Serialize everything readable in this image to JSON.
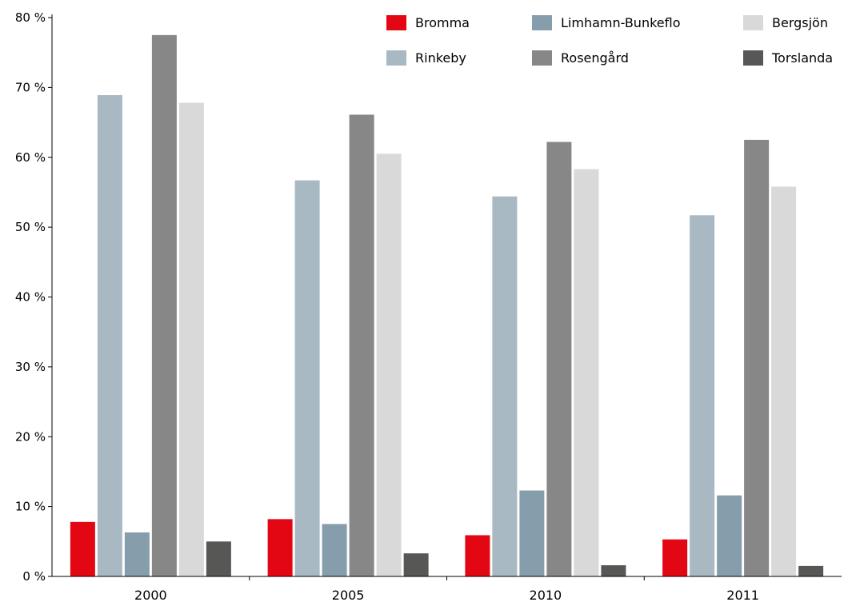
{
  "chart_data": {
    "type": "bar",
    "categories": [
      "2000",
      "2005",
      "2010",
      "2011"
    ],
    "series": [
      {
        "name": "Bromma",
        "color": "#e30613",
        "values": [
          7.8,
          8.2,
          5.9,
          5.3
        ]
      },
      {
        "name": "Rinkeby",
        "color": "#a9b9c4",
        "values": [
          68.9,
          56.7,
          54.4,
          51.7
        ]
      },
      {
        "name": "Limhamn-Bunkeflo",
        "color": "#869dab",
        "values": [
          6.3,
          7.5,
          12.3,
          11.6
        ]
      },
      {
        "name": "Rosengård",
        "color": "#878787",
        "values": [
          77.5,
          66.1,
          62.2,
          62.5
        ]
      },
      {
        "name": "Bergsjön",
        "color": "#d9d9d9",
        "values": [
          67.8,
          60.5,
          58.3,
          55.8
        ]
      },
      {
        "name": "Torslanda",
        "color": "#575756",
        "values": [
          5.0,
          3.3,
          1.6,
          1.5
        ]
      }
    ],
    "legend_order": [
      "Bromma",
      "Limhamn-Bunkeflo",
      "Bergsjön",
      "Rinkeby",
      "Rosengård",
      "Torslanda"
    ],
    "ylim": [
      0,
      80
    ],
    "yticks": [
      0,
      10,
      20,
      30,
      40,
      50,
      60,
      70,
      80
    ],
    "ytick_suffix": " %",
    "legend_position": "top-right",
    "grid": false
  }
}
